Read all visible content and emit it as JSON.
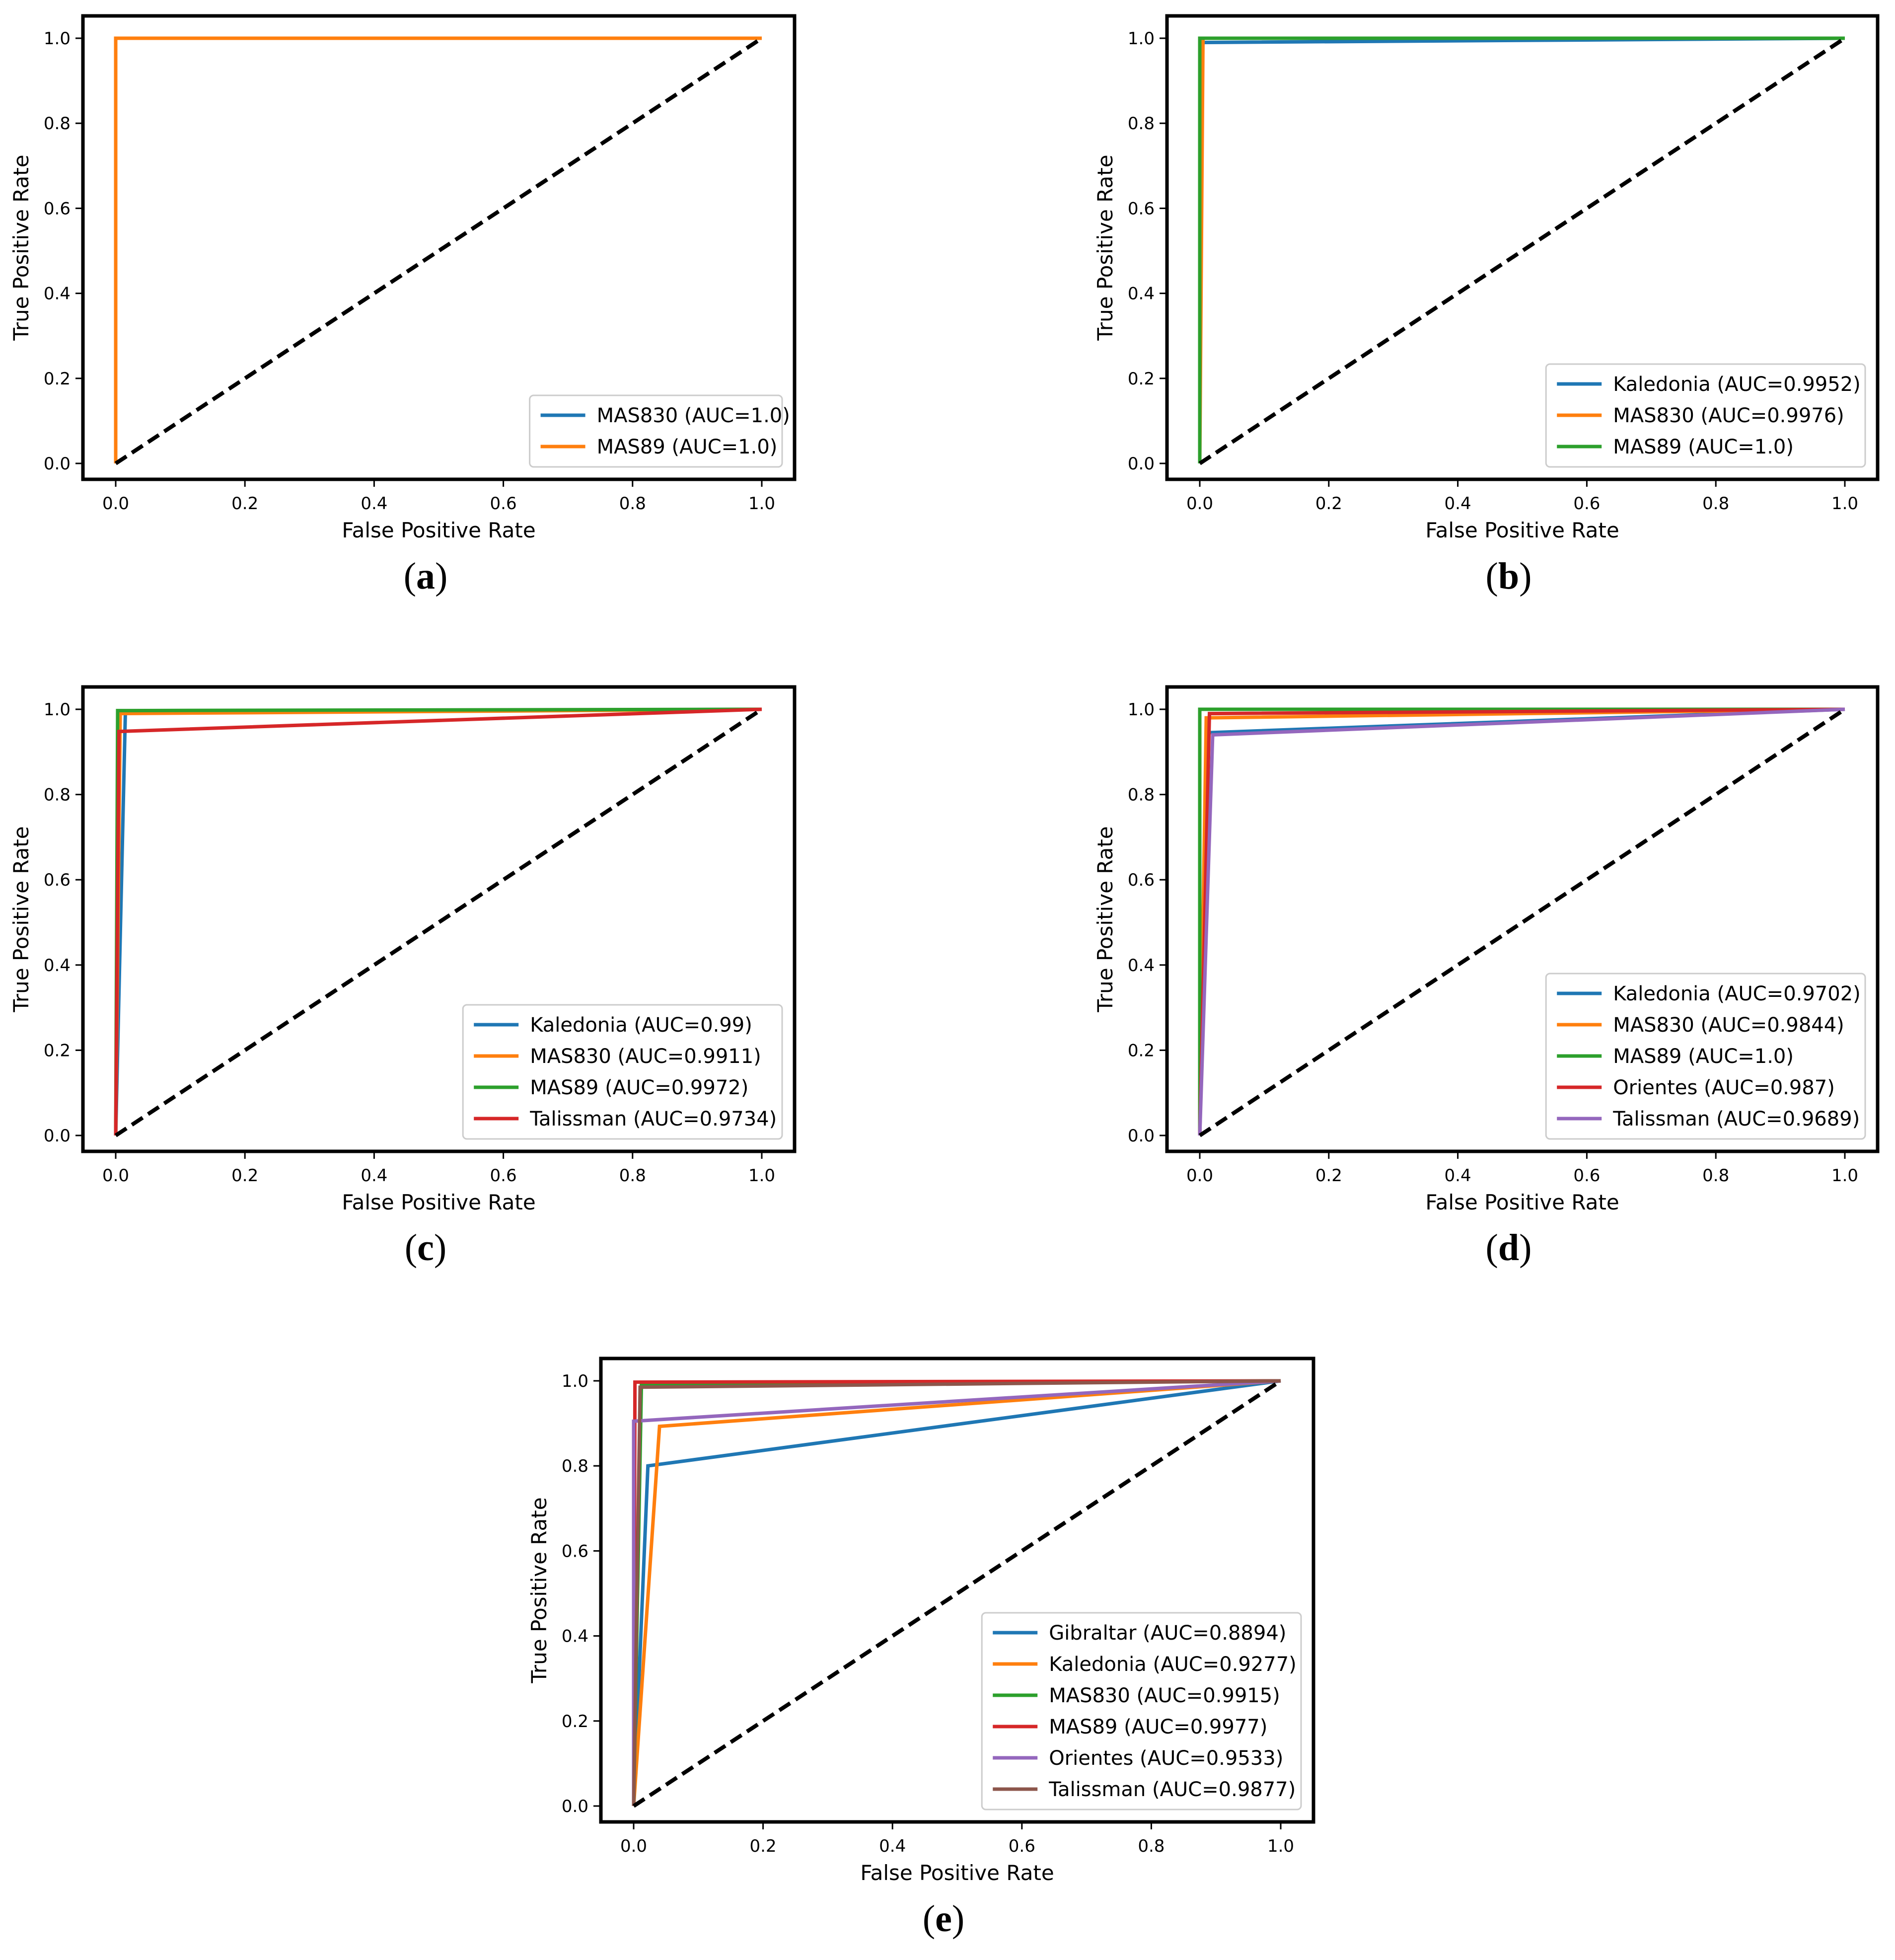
{
  "chart_data": [
    {
      "panel": "a",
      "caption": "(a)",
      "type": "line",
      "xlabel": "False Positive Rate",
      "ylabel": "True Positive Rate",
      "xlim": [
        0.0,
        1.0
      ],
      "ylim": [
        0.0,
        1.0
      ],
      "xticks": [
        "0.0",
        "0.2",
        "0.4",
        "0.6",
        "0.8",
        "1.0"
      ],
      "yticks": [
        "0.0",
        "0.2",
        "0.4",
        "0.6",
        "0.8",
        "1.0"
      ],
      "legend_position": "bottom-right",
      "diagonal": {
        "style": "dashed",
        "color": "#000000",
        "points": [
          [
            0,
            0
          ],
          [
            1,
            1
          ]
        ]
      },
      "series": [
        {
          "name": "MAS830 (AUC=1.0)",
          "color": "#1f77b4",
          "points": [
            [
              0,
              0
            ],
            [
              0,
              1
            ],
            [
              1,
              1
            ]
          ]
        },
        {
          "name": "MAS89 (AUC=1.0)",
          "color": "#ff7f0e",
          "points": [
            [
              0,
              0
            ],
            [
              0,
              1
            ],
            [
              1,
              1
            ]
          ]
        }
      ]
    },
    {
      "panel": "b",
      "caption": "(b)",
      "type": "line",
      "xlabel": "False Positive Rate",
      "ylabel": "True Positive Rate",
      "xlim": [
        0.0,
        1.0
      ],
      "ylim": [
        0.0,
        1.0
      ],
      "xticks": [
        "0.0",
        "0.2",
        "0.4",
        "0.6",
        "0.8",
        "1.0"
      ],
      "yticks": [
        "0.0",
        "0.2",
        "0.4",
        "0.6",
        "0.8",
        "1.0"
      ],
      "legend_position": "bottom-right",
      "diagonal": {
        "style": "dashed",
        "color": "#000000",
        "points": [
          [
            0,
            0
          ],
          [
            1,
            1
          ]
        ]
      },
      "series": [
        {
          "name": "Kaledonia (AUC=0.9952)",
          "color": "#1f77b4",
          "points": [
            [
              0,
              0
            ],
            [
              0.0,
              0.99
            ],
            [
              1,
              1
            ]
          ]
        },
        {
          "name": "MAS830 (AUC=0.9976)",
          "color": "#ff7f0e",
          "points": [
            [
              0,
              0
            ],
            [
              0.005,
              1.0
            ],
            [
              1,
              1
            ]
          ]
        },
        {
          "name": "MAS89 (AUC=1.0)",
          "color": "#2ca02c",
          "points": [
            [
              0,
              0
            ],
            [
              0,
              1
            ],
            [
              1,
              1
            ]
          ]
        }
      ]
    },
    {
      "panel": "c",
      "caption": "(c)",
      "type": "line",
      "xlabel": "False Positive Rate",
      "ylabel": "True Positive Rate",
      "xlim": [
        0.0,
        1.0
      ],
      "ylim": [
        0.0,
        1.0
      ],
      "xticks": [
        "0.0",
        "0.2",
        "0.4",
        "0.6",
        "0.8",
        "1.0"
      ],
      "yticks": [
        "0.0",
        "0.2",
        "0.4",
        "0.6",
        "0.8",
        "1.0"
      ],
      "legend_position": "bottom-right",
      "diagonal": {
        "style": "dashed",
        "color": "#000000",
        "points": [
          [
            0,
            0
          ],
          [
            1,
            1
          ]
        ]
      },
      "series": [
        {
          "name": "Kaledonia (AUC=0.99)",
          "color": "#1f77b4",
          "points": [
            [
              0,
              0
            ],
            [
              0.015,
              0.995
            ],
            [
              1,
              1
            ]
          ]
        },
        {
          "name": "MAS830 (AUC=0.9911)",
          "color": "#ff7f0e",
          "points": [
            [
              0,
              0
            ],
            [
              0.007,
              0.99
            ],
            [
              1,
              1
            ]
          ]
        },
        {
          "name": "MAS89 (AUC=0.9972)",
          "color": "#2ca02c",
          "points": [
            [
              0,
              0
            ],
            [
              0.003,
              0.997
            ],
            [
              1,
              1
            ]
          ]
        },
        {
          "name": "Talissman (AUC=0.9734)",
          "color": "#d62728",
          "points": [
            [
              0,
              0
            ],
            [
              0.005,
              0.948
            ],
            [
              1,
              1
            ]
          ]
        }
      ]
    },
    {
      "panel": "d",
      "caption": "(d)",
      "type": "line",
      "xlabel": "False Positive Rate",
      "ylabel": "True Positive Rate",
      "xlim": [
        0.0,
        1.0
      ],
      "ylim": [
        0.0,
        1.0
      ],
      "xticks": [
        "0.0",
        "0.2",
        "0.4",
        "0.6",
        "0.8",
        "1.0"
      ],
      "yticks": [
        "0.0",
        "0.2",
        "0.4",
        "0.6",
        "0.8",
        "1.0"
      ],
      "legend_position": "bottom-right",
      "diagonal": {
        "style": "dashed",
        "color": "#000000",
        "points": [
          [
            0,
            0
          ],
          [
            1,
            1
          ]
        ]
      },
      "series": [
        {
          "name": "Kaledonia (AUC=0.9702)",
          "color": "#1f77b4",
          "points": [
            [
              0,
              0
            ],
            [
              0.01,
              0.945
            ],
            [
              1,
              1
            ]
          ]
        },
        {
          "name": "MAS830 (AUC=0.9844)",
          "color": "#ff7f0e",
          "points": [
            [
              0,
              0
            ],
            [
              0.01,
              0.98
            ],
            [
              1,
              1
            ]
          ]
        },
        {
          "name": "MAS89 (AUC=1.0)",
          "color": "#2ca02c",
          "points": [
            [
              0,
              0
            ],
            [
              0,
              1
            ],
            [
              1,
              1
            ]
          ]
        },
        {
          "name": "Orientes (AUC=0.987)",
          "color": "#d62728",
          "points": [
            [
              0,
              0
            ],
            [
              0.015,
              0.99
            ],
            [
              1,
              1
            ]
          ]
        },
        {
          "name": "Talissman (AUC=0.9689)",
          "color": "#9467bd",
          "points": [
            [
              0,
              0
            ],
            [
              0.02,
              0.94
            ],
            [
              1,
              1
            ]
          ]
        }
      ]
    },
    {
      "panel": "e",
      "caption": "(e)",
      "type": "line",
      "xlabel": "False Positive Rate",
      "ylabel": "True Positive Rate",
      "xlim": [
        0.0,
        1.0
      ],
      "ylim": [
        0.0,
        1.0
      ],
      "xticks": [
        "0.0",
        "0.2",
        "0.4",
        "0.6",
        "0.8",
        "1.0"
      ],
      "yticks": [
        "0.0",
        "0.2",
        "0.4",
        "0.6",
        "0.8",
        "1.0"
      ],
      "legend_position": "bottom-right",
      "diagonal": {
        "style": "dashed",
        "color": "#000000",
        "points": [
          [
            0,
            0
          ],
          [
            1,
            1
          ]
        ]
      },
      "series": [
        {
          "name": "Gibraltar (AUC=0.8894)",
          "color": "#1f77b4",
          "points": [
            [
              0,
              0
            ],
            [
              0.022,
              0.8
            ],
            [
              1,
              1
            ]
          ]
        },
        {
          "name": "Kaledonia (AUC=0.9277)",
          "color": "#ff7f0e",
          "points": [
            [
              0,
              0
            ],
            [
              0.04,
              0.893
            ],
            [
              1,
              1
            ]
          ]
        },
        {
          "name": "MAS830 (AUC=0.9915)",
          "color": "#2ca02c",
          "points": [
            [
              0,
              0
            ],
            [
              0.012,
              0.99
            ],
            [
              1,
              1
            ]
          ]
        },
        {
          "name": "MAS89 (AUC=0.9977)",
          "color": "#d62728",
          "points": [
            [
              0,
              0
            ],
            [
              0.002,
              0.997
            ],
            [
              1,
              1
            ]
          ]
        },
        {
          "name": "Orientes (AUC=0.9533)",
          "color": "#9467bd",
          "points": [
            [
              0,
              0
            ],
            [
              0.0,
              0.905
            ],
            [
              1,
              1
            ]
          ]
        },
        {
          "name": "Talissman (AUC=0.9877)",
          "color": "#8c564b",
          "points": [
            [
              0,
              0
            ],
            [
              0.01,
              0.985
            ],
            [
              1,
              1
            ]
          ]
        }
      ]
    }
  ]
}
